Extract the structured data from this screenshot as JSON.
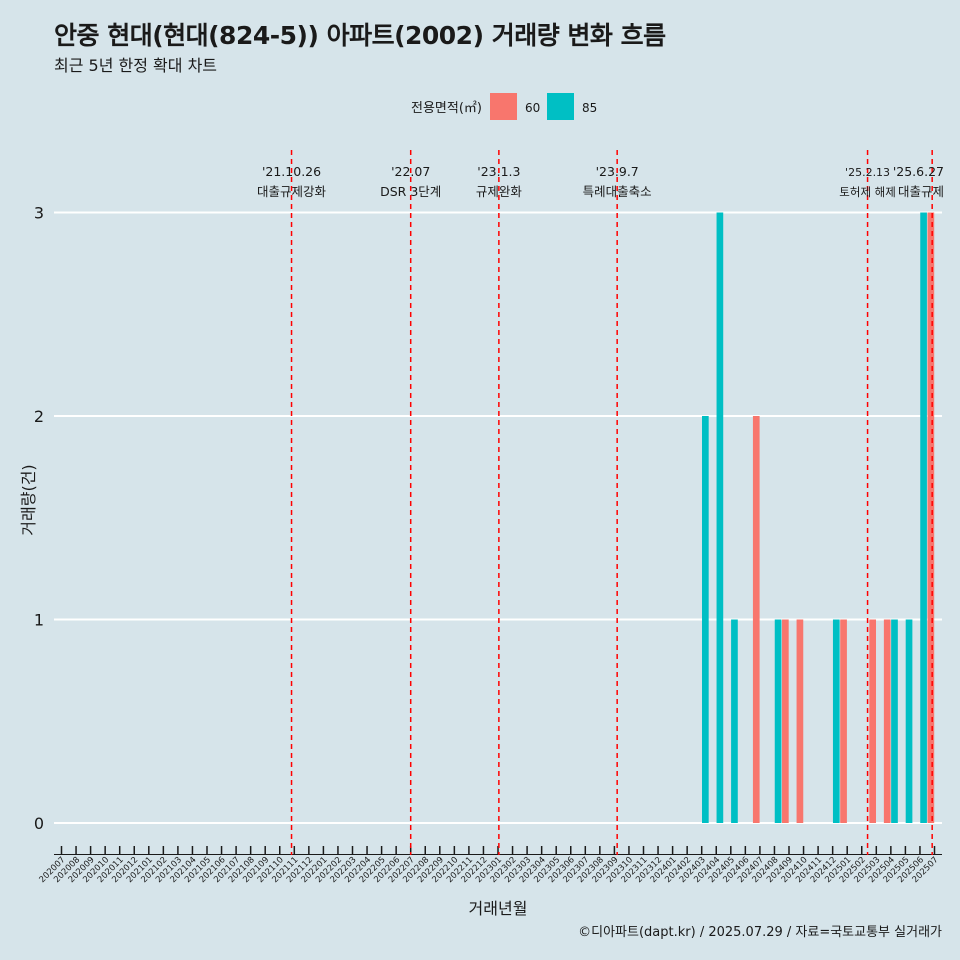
{
  "title": "안중 현대(현대(824-5)) 아파트(2002) 거래량 변화 흐름",
  "subtitle": "최근 5년 한정 확대 차트",
  "caption": "©디아파트(dapt.kr) / 2025.07.29 / 자료=국토교통부 실거래가",
  "chart_data": {
    "type": "bar",
    "xlabel": "거래년월",
    "ylabel": "거래량(건)",
    "legend": {
      "title": "전용면적(㎡)",
      "position": "top"
    },
    "ylim": [
      0,
      3
    ],
    "yticks": [
      0,
      1,
      2,
      3
    ],
    "grid": true,
    "categories": [
      "202007",
      "202008",
      "202009",
      "202010",
      "202011",
      "202012",
      "202101",
      "202102",
      "202103",
      "202104",
      "202105",
      "202106",
      "202107",
      "202108",
      "202109",
      "202110",
      "202111",
      "202112",
      "202201",
      "202202",
      "202203",
      "202204",
      "202205",
      "202206",
      "202207",
      "202208",
      "202209",
      "202210",
      "202211",
      "202212",
      "202301",
      "202302",
      "202303",
      "202304",
      "202305",
      "202306",
      "202307",
      "202308",
      "202309",
      "202310",
      "202311",
      "202312",
      "202401",
      "202402",
      "202403",
      "202404",
      "202405",
      "202406",
      "202407",
      "202408",
      "202409",
      "202410",
      "202411",
      "202412",
      "202501",
      "202502",
      "202503",
      "202504",
      "202505",
      "202506",
      "202507"
    ],
    "series": [
      {
        "name": "60",
        "color": "#f8766d",
        "values": [
          0,
          0,
          0,
          0,
          0,
          0,
          0,
          0,
          0,
          0,
          0,
          0,
          0,
          0,
          0,
          0,
          0,
          0,
          0,
          0,
          0,
          0,
          0,
          0,
          0,
          0,
          0,
          0,
          0,
          0,
          0,
          0,
          0,
          0,
          0,
          0,
          0,
          0,
          0,
          0,
          0,
          0,
          0,
          0,
          0,
          0,
          0,
          0,
          2,
          0,
          1,
          1,
          0,
          0,
          1,
          0,
          1,
          1,
          0,
          0,
          3
        ]
      },
      {
        "name": "85",
        "color": "#00bfc4",
        "values": [
          0,
          0,
          0,
          0,
          0,
          0,
          0,
          0,
          0,
          0,
          0,
          0,
          0,
          0,
          0,
          0,
          0,
          0,
          0,
          0,
          0,
          0,
          0,
          0,
          0,
          0,
          0,
          0,
          0,
          0,
          0,
          0,
          0,
          0,
          0,
          0,
          0,
          0,
          0,
          0,
          0,
          0,
          0,
          0,
          2,
          3,
          1,
          0,
          0,
          1,
          0,
          0,
          0,
          1,
          0,
          0,
          0,
          1,
          1,
          3,
          0
        ]
      }
    ],
    "events": [
      {
        "date": "'21.10.26",
        "label": "대출규제강화",
        "month": "202110",
        "frac": 0.81
      },
      {
        "date": "'22.07",
        "label": "DSR 3단계",
        "month": "202207",
        "frac": 0.0
      },
      {
        "date": "'23.1.3",
        "label": "규제완화",
        "month": "202301",
        "frac": 0.06
      },
      {
        "date": "'23.9.7",
        "label": "특례대출축소",
        "month": "202309",
        "frac": 0.19
      },
      {
        "date": "'25.2.13",
        "label": "토허제 해제",
        "month": "202502",
        "frac": 0.4
      },
      {
        "date": "'25.6.27",
        "label": "대출규제",
        "month": "202506",
        "frac": 0.84
      }
    ],
    "event_line_color": "#ff0000"
  }
}
